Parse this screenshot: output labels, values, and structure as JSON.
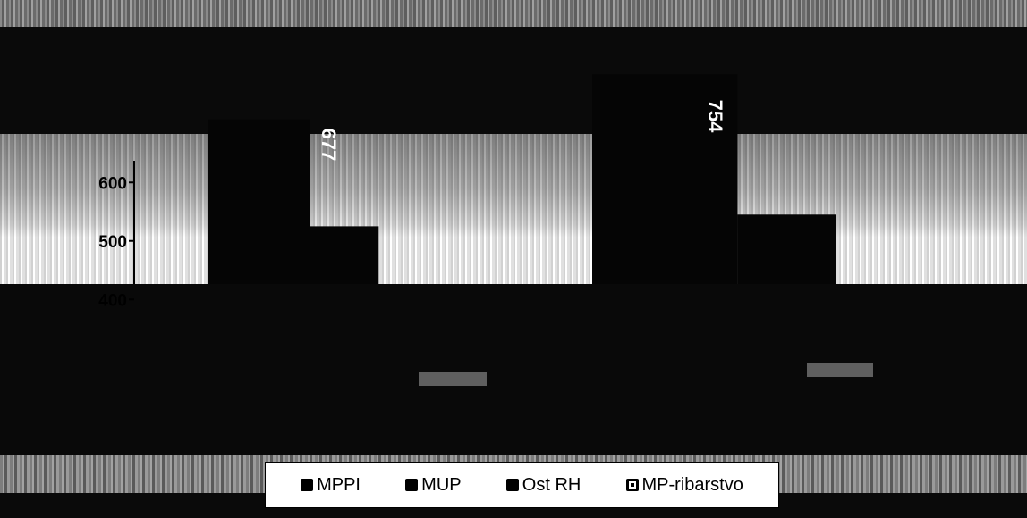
{
  "chart_data": {
    "type": "bar",
    "categories": [
      "",
      ""
    ],
    "series": [
      {
        "name": "MPPI",
        "values": [
          677,
          754
        ]
      },
      {
        "name": "MUP",
        "values": [
          525,
          545
        ]
      },
      {
        "name": "Ost RH",
        "values": [
          null,
          null
        ]
      },
      {
        "name": "MP-ribarstvo",
        "values": [
          null,
          null
        ]
      }
    ],
    "data_labels": [
      "677",
      "754"
    ],
    "y_ticks": [
      "400",
      "500",
      "600"
    ],
    "legend_position": "bottom",
    "colors": {
      "bar": "#050505",
      "label": "#ffffff",
      "background": "#ffffff"
    }
  },
  "legend": {
    "items": [
      {
        "label": "MPPI",
        "swatch": "solid"
      },
      {
        "label": "MUP",
        "swatch": "solid"
      },
      {
        "label": "Ost RH",
        "swatch": "solid"
      },
      {
        "label": "MP-ribarstvo",
        "swatch": "hollow"
      }
    ]
  }
}
